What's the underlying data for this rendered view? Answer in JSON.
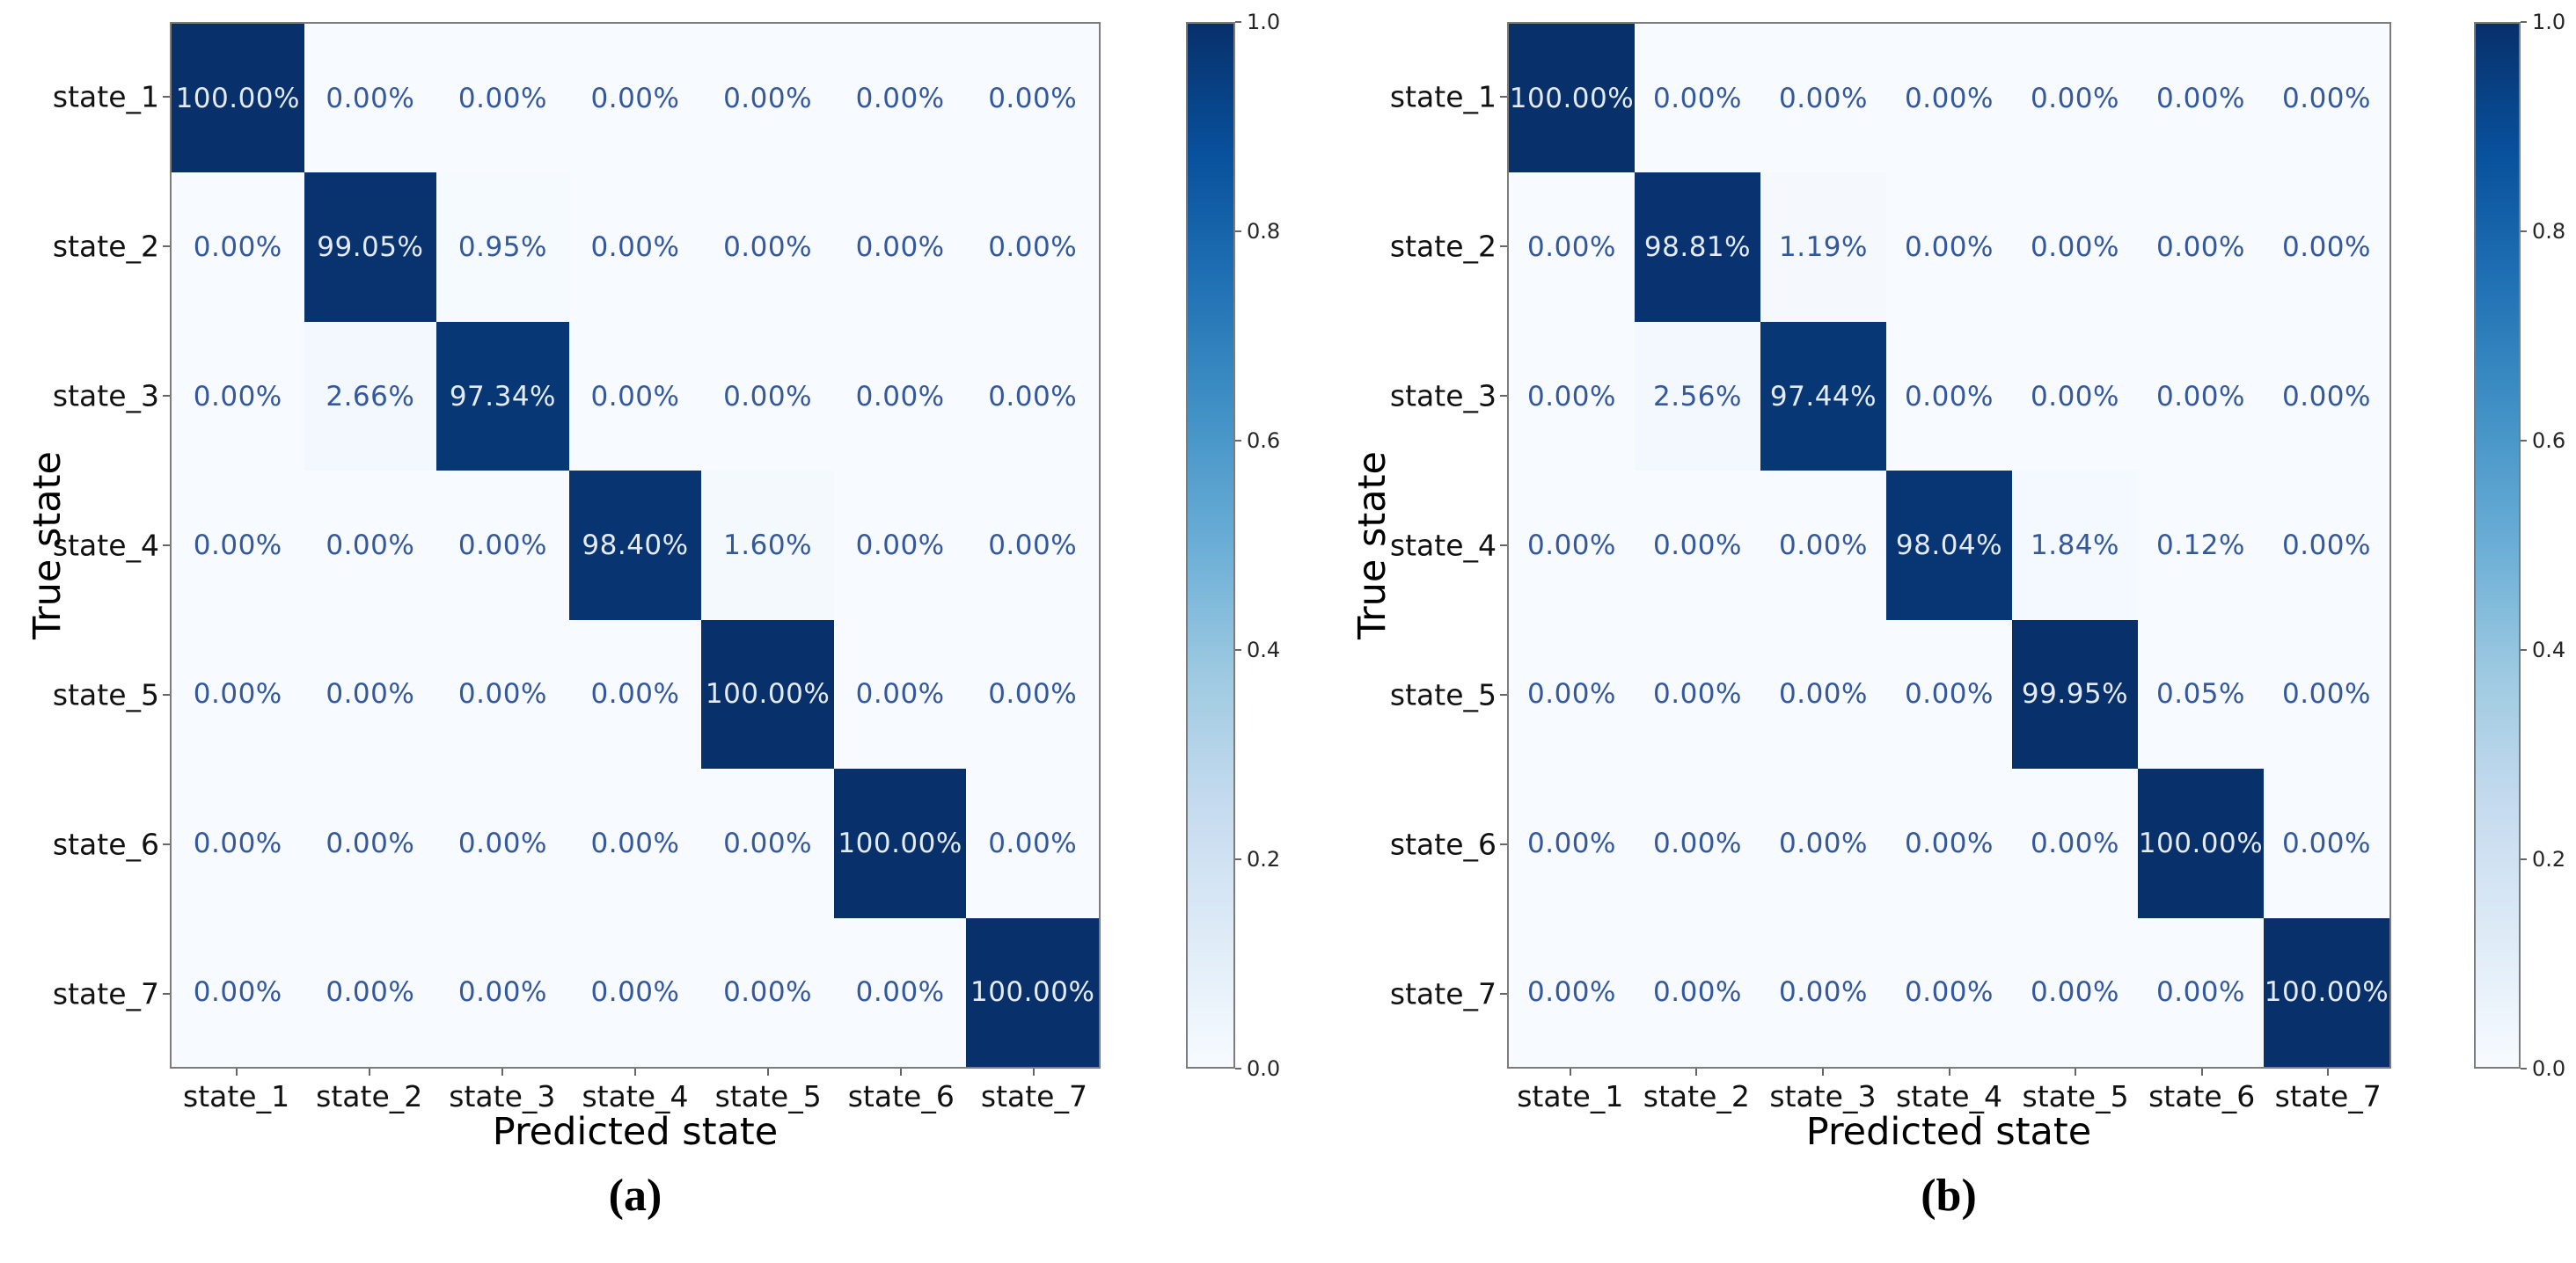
{
  "figure": {
    "type": "side-by-side confusion matrices",
    "background": "#ffffff",
    "colors": {
      "colormap_max": "#08306b",
      "colormap_min": "#f7fbff",
      "annotation_on_dark": "#e4ebf5",
      "annotation_on_light": "#34589d",
      "tick_label": "#111111",
      "colorbar_tick_label": "#262626",
      "spine": "#7c7c7c"
    }
  },
  "chart_data": [
    {
      "type": "heatmap",
      "panel_label": "(a)",
      "xlabel": "Predicted state",
      "ylabel": "True state",
      "x_categories": [
        "state_1",
        "state_2",
        "state_3",
        "state_4",
        "state_5",
        "state_6",
        "state_7"
      ],
      "y_categories": [
        "state_1",
        "state_2",
        "state_3",
        "state_4",
        "state_5",
        "state_6",
        "state_7"
      ],
      "values_percent": [
        [
          100.0,
          0.0,
          0.0,
          0.0,
          0.0,
          0.0,
          0.0
        ],
        [
          0.0,
          99.05,
          0.95,
          0.0,
          0.0,
          0.0,
          0.0
        ],
        [
          0.0,
          2.66,
          97.34,
          0.0,
          0.0,
          0.0,
          0.0
        ],
        [
          0.0,
          0.0,
          0.0,
          98.4,
          1.6,
          0.0,
          0.0
        ],
        [
          0.0,
          0.0,
          0.0,
          0.0,
          100.0,
          0.0,
          0.0
        ],
        [
          0.0,
          0.0,
          0.0,
          0.0,
          0.0,
          100.0,
          0.0
        ],
        [
          0.0,
          0.0,
          0.0,
          0.0,
          0.0,
          0.0,
          100.0
        ]
      ],
      "annotation_format": "0.00%",
      "colormap": "Blues",
      "value_range": [
        0,
        1
      ],
      "colorbar_ticks": [
        1.0,
        0.8,
        0.6,
        0.4,
        0.2,
        0.0
      ],
      "grid": false,
      "legend_position": "colorbar-right"
    },
    {
      "type": "heatmap",
      "panel_label": "(b)",
      "xlabel": "Predicted state",
      "ylabel": "True state",
      "x_categories": [
        "state_1",
        "state_2",
        "state_3",
        "state_4",
        "state_5",
        "state_6",
        "state_7"
      ],
      "y_categories": [
        "state_1",
        "state_2",
        "state_3",
        "state_4",
        "state_5",
        "state_6",
        "state_7"
      ],
      "values_percent": [
        [
          100.0,
          0.0,
          0.0,
          0.0,
          0.0,
          0.0,
          0.0
        ],
        [
          0.0,
          98.81,
          1.19,
          0.0,
          0.0,
          0.0,
          0.0
        ],
        [
          0.0,
          2.56,
          97.44,
          0.0,
          0.0,
          0.0,
          0.0
        ],
        [
          0.0,
          0.0,
          0.0,
          98.04,
          1.84,
          0.12,
          0.0
        ],
        [
          0.0,
          0.0,
          0.0,
          0.0,
          99.95,
          0.05,
          0.0
        ],
        [
          0.0,
          0.0,
          0.0,
          0.0,
          0.0,
          100.0,
          0.0
        ],
        [
          0.0,
          0.0,
          0.0,
          0.0,
          0.0,
          0.0,
          100.0
        ]
      ],
      "annotation_format": "0.00%",
      "colormap": "Blues",
      "value_range": [
        0,
        1
      ],
      "colorbar_ticks": [
        1.0,
        0.8,
        0.6,
        0.4,
        0.2,
        0.0
      ],
      "grid": false,
      "legend_position": "colorbar-right"
    }
  ]
}
